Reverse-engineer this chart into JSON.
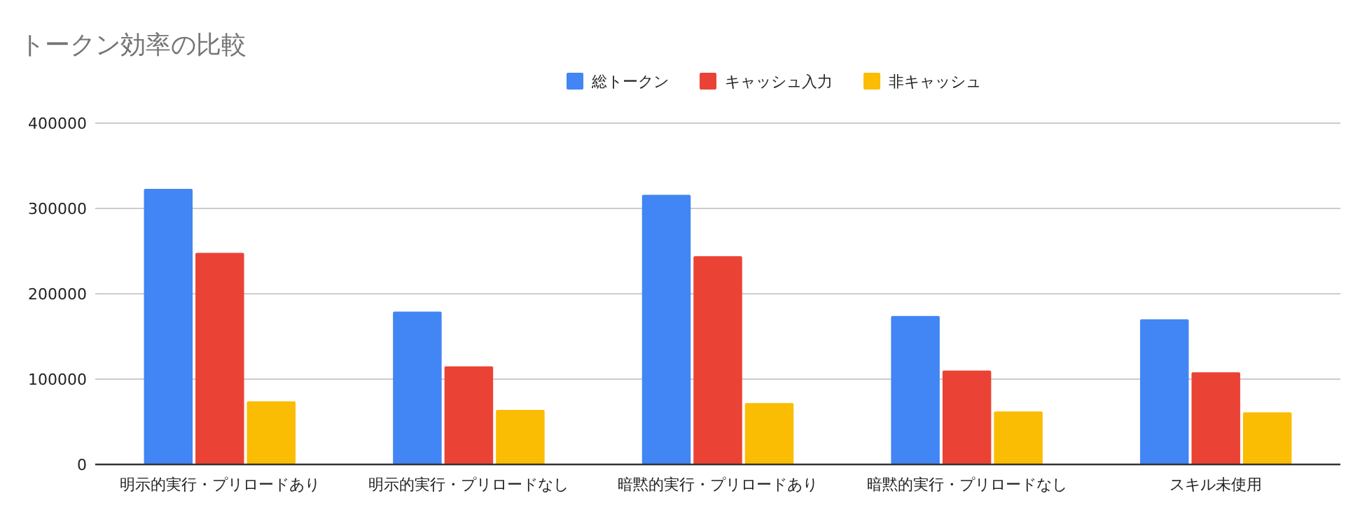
{
  "chart_data": {
    "type": "bar",
    "title": "トークン効率の比較",
    "categories": [
      "明示的実行・プリロードあり",
      "明示的実行・プリロードなし",
      "暗黙的実行・プリロードあり",
      "暗黙的実行・プリロードなし",
      "スキル未使用"
    ],
    "series": [
      {
        "name": "総トークン",
        "color": "#4285f4",
        "values": [
          323000,
          179000,
          316000,
          174000,
          170000
        ]
      },
      {
        "name": "キャッシュ入力",
        "color": "#ea4335",
        "values": [
          248000,
          115000,
          244000,
          110000,
          108000
        ]
      },
      {
        "name": "非キャッシュ",
        "color": "#fbbc04",
        "values": [
          74000,
          64000,
          72000,
          62000,
          61000
        ]
      }
    ],
    "ylim": [
      0,
      400000
    ],
    "yticks": [
      0,
      100000,
      200000,
      300000,
      400000
    ],
    "grid": "y",
    "legend": "top"
  }
}
